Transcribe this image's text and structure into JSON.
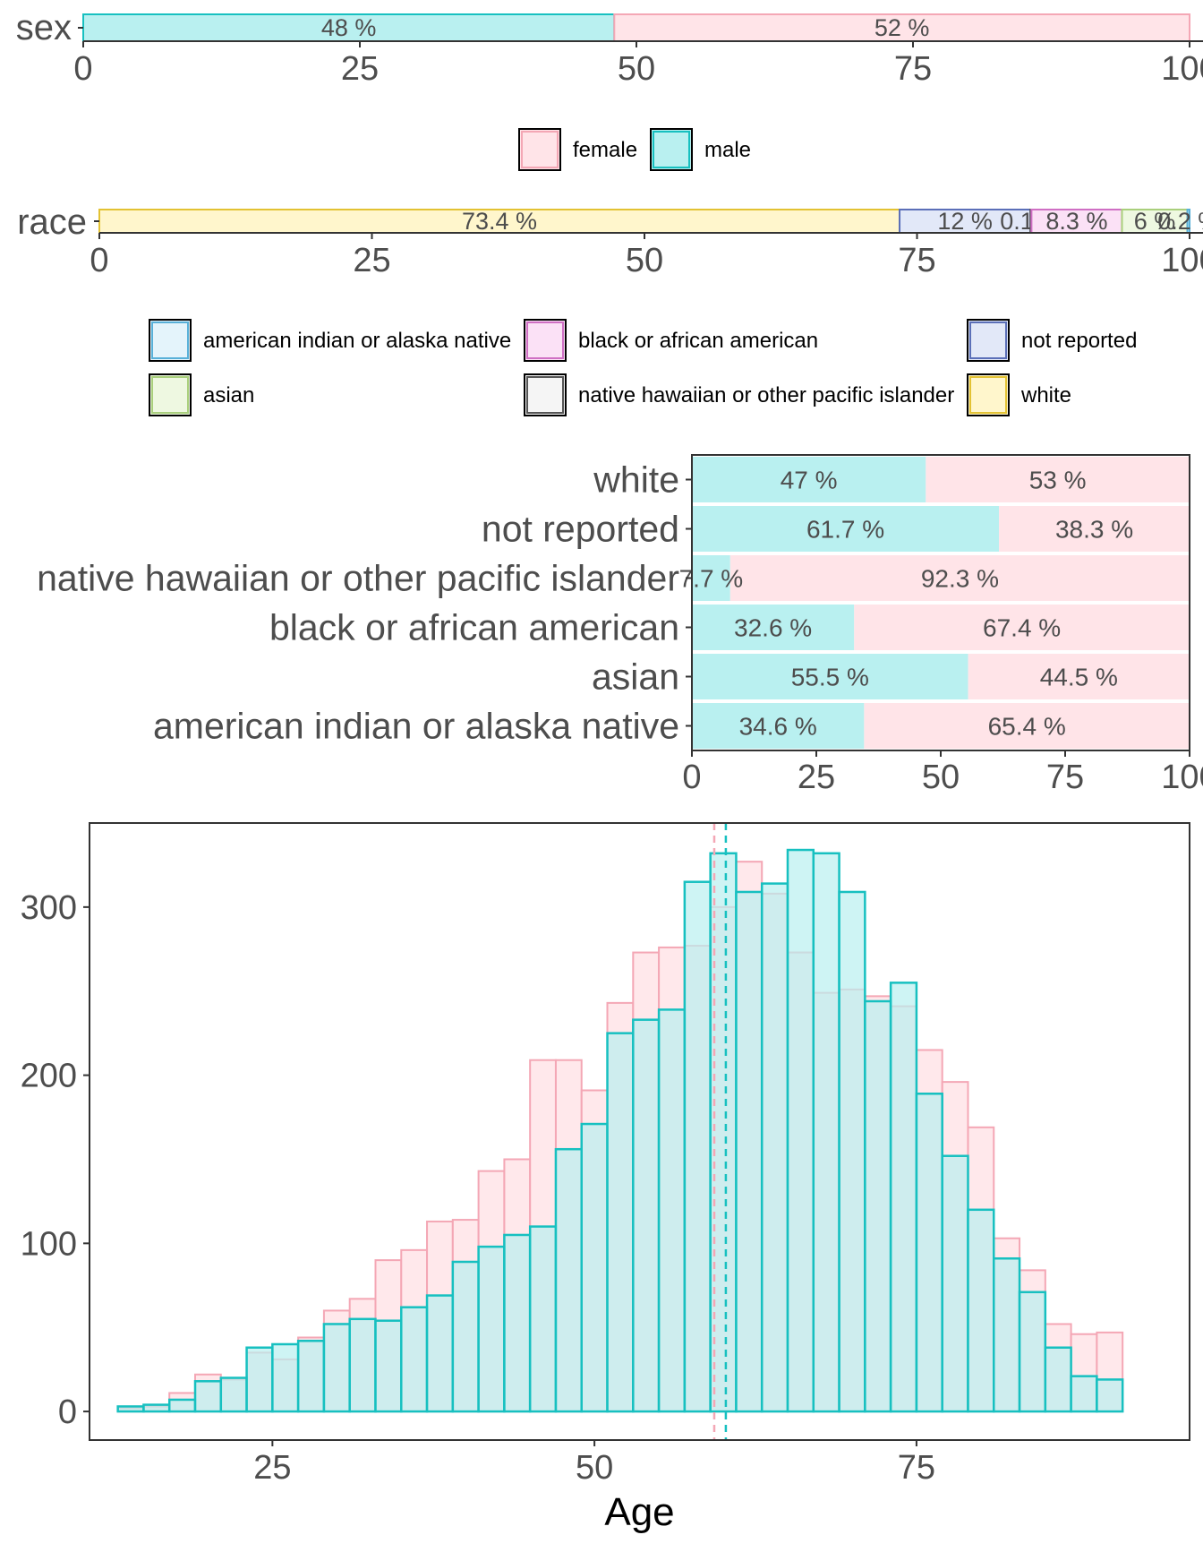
{
  "chart_data": [
    {
      "type": "bar",
      "orientation": "horizontal-stacked",
      "category": "sex",
      "xlim": [
        0,
        100
      ],
      "ticks": [
        "0",
        "25",
        "50",
        "75",
        "100"
      ],
      "segments": [
        {
          "name": "male",
          "value": 48,
          "label": "48 %"
        },
        {
          "name": "female",
          "value": 52,
          "label": "52 %"
        }
      ],
      "legend": {
        "placement": "bottom",
        "entries": [
          {
            "label": "female",
            "fill": "#ffe4e8",
            "stroke": "#f4a7b5"
          },
          {
            "label": "male",
            "fill": "#b9f0f0",
            "stroke": "#17c0c0"
          }
        ]
      }
    },
    {
      "type": "bar",
      "orientation": "horizontal-stacked",
      "category": "race",
      "xlim": [
        0,
        100
      ],
      "ticks": [
        "0",
        "25",
        "50",
        "75",
        "100"
      ],
      "segments": [
        {
          "name": "white",
          "value": 73.4,
          "label": "73.4 %"
        },
        {
          "name": "not reported",
          "value": 12,
          "label": "12 %"
        },
        {
          "name": "native hawaiian or other pacific islander",
          "value": 0.1,
          "label": "0.1 %"
        },
        {
          "name": "black or african american",
          "value": 8.3,
          "label": "8.3 %"
        },
        {
          "name": "asian",
          "value": 6,
          "label": "6 %"
        },
        {
          "name": "american indian or alaska native",
          "value": 0.2,
          "label": "0.2 %"
        }
      ],
      "legend": {
        "placement": "bottom",
        "entries": [
          {
            "label": "american indian or alaska native",
            "fill": "#e4f4fb",
            "stroke": "#58b0d8"
          },
          {
            "label": "black or african american",
            "fill": "#fbe1f6",
            "stroke": "#cf6fc4"
          },
          {
            "label": "not reported",
            "fill": "#e2e8f8",
            "stroke": "#5b6fb8"
          },
          {
            "label": "asian",
            "fill": "#eef8e1",
            "stroke": "#a9cf7c"
          },
          {
            "label": "native hawaiian or other pacific islander",
            "fill": "#f5f5f5",
            "stroke": "#555555"
          },
          {
            "label": "white",
            "fill": "#fff6cc",
            "stroke": "#e3c233"
          }
        ]
      }
    },
    {
      "type": "bar",
      "orientation": "horizontal-stacked-percent",
      "xlim": [
        0,
        100
      ],
      "ticks": [
        "0",
        "25",
        "50",
        "75",
        "100"
      ],
      "categories": [
        "white",
        "not reported",
        "native hawaiian or other pacific islander",
        "black or african american",
        "asian",
        "american indian or alaska native"
      ],
      "series": [
        {
          "name": "male",
          "values": [
            47,
            61.7,
            7.7,
            32.6,
            55.5,
            34.6
          ],
          "labels": [
            "47 %",
            "61.7 %",
            "7.7 %",
            "32.6 %",
            "55.5 %",
            "34.6 %"
          ]
        },
        {
          "name": "female",
          "values": [
            53,
            38.3,
            92.3,
            67.4,
            44.5,
            65.4
          ],
          "labels": [
            "53 %",
            "38.3 %",
            "92.3 %",
            "67.4 %",
            "44.5 %",
            "65.4 %"
          ]
        }
      ]
    },
    {
      "type": "bar",
      "subtype": "histogram-overlay",
      "xlabel": "Age",
      "ylabel": "",
      "xlim": [
        10.8,
        96.2
      ],
      "ylim": [
        -17,
        350
      ],
      "xticks": [
        25,
        50,
        75
      ],
      "yticks": [
        0,
        100,
        200,
        300
      ],
      "bin_centers": [
        14,
        16,
        18,
        20,
        22,
        24,
        26,
        28,
        30,
        32,
        34,
        36,
        38,
        40,
        42,
        44,
        46,
        48,
        50,
        52,
        54,
        56,
        58,
        60,
        62,
        64,
        66,
        68,
        70,
        72,
        74,
        76,
        78,
        80,
        82,
        84,
        86,
        88,
        90
      ],
      "bin_width": 2,
      "series": [
        {
          "name": "female",
          "values": [
            2,
            3,
            11,
            22,
            19,
            35,
            31,
            44,
            60,
            67,
            90,
            96,
            113,
            114,
            143,
            150,
            209,
            209,
            191,
            243,
            273,
            276,
            277,
            300,
            327,
            308,
            273,
            249,
            251,
            247,
            241,
            215,
            196,
            169,
            103,
            84,
            52,
            46,
            47
          ],
          "mean": 59.3
        },
        {
          "name": "male",
          "values": [
            3,
            4,
            7,
            18,
            20,
            38,
            40,
            42,
            52,
            55,
            54,
            62,
            69,
            89,
            98,
            105,
            110,
            156,
            171,
            225,
            233,
            239,
            315,
            332,
            309,
            314,
            334,
            332,
            309,
            244,
            255,
            189,
            152,
            120,
            91,
            71,
            38,
            21,
            19
          ],
          "mean": 60.2
        }
      ]
    }
  ],
  "colors": {
    "male_fill": "#b9f0f0",
    "male_stroke": "#17c0c0",
    "female_fill": "#ffe4e8",
    "female_stroke": "#f4a7b5",
    "overlap_fill": "#c1e2e4",
    "text": "#4d4d4d"
  }
}
